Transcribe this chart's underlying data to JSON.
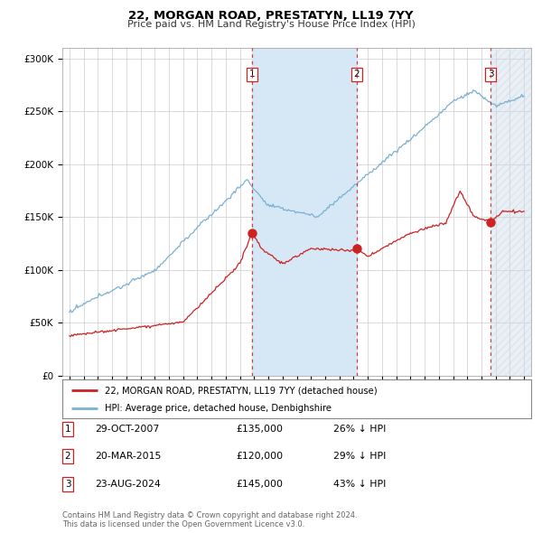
{
  "title": "22, MORGAN ROAD, PRESTATYN, LL19 7YY",
  "subtitle": "Price paid vs. HM Land Registry's House Price Index (HPI)",
  "legend_line1": "22, MORGAN ROAD, PRESTATYN, LL19 7YY (detached house)",
  "legend_line2": "HPI: Average price, detached house, Denbighshire",
  "footer1": "Contains HM Land Registry data © Crown copyright and database right 2024.",
  "footer2": "This data is licensed under the Open Government Licence v3.0.",
  "transactions": [
    {
      "num": 1,
      "date": "29-OCT-2007",
      "price": 135000,
      "pct": "26%",
      "direction": "↓",
      "year": 2007.83
    },
    {
      "num": 2,
      "date": "20-MAR-2015",
      "price": 120000,
      "pct": "29%",
      "direction": "↓",
      "year": 2015.22
    },
    {
      "num": 3,
      "date": "23-AUG-2024",
      "price": 145000,
      "pct": "43%",
      "direction": "↓",
      "year": 2024.64
    }
  ],
  "xlim": [
    1994.5,
    2027.5
  ],
  "ylim": [
    0,
    310000
  ],
  "yticks": [
    0,
    50000,
    100000,
    150000,
    200000,
    250000,
    300000
  ],
  "ytick_labels": [
    "£0",
    "£50K",
    "£100K",
    "£150K",
    "£200K",
    "£250K",
    "£300K"
  ],
  "price_color": "#cc2222",
  "hpi_color": "#7ab0d4",
  "marker_color": "#cc2222",
  "shade_color": "#d6e8f5",
  "hatch_color": "#c8d8e8",
  "grid_color": "#cccccc",
  "background_color": "#ffffff"
}
